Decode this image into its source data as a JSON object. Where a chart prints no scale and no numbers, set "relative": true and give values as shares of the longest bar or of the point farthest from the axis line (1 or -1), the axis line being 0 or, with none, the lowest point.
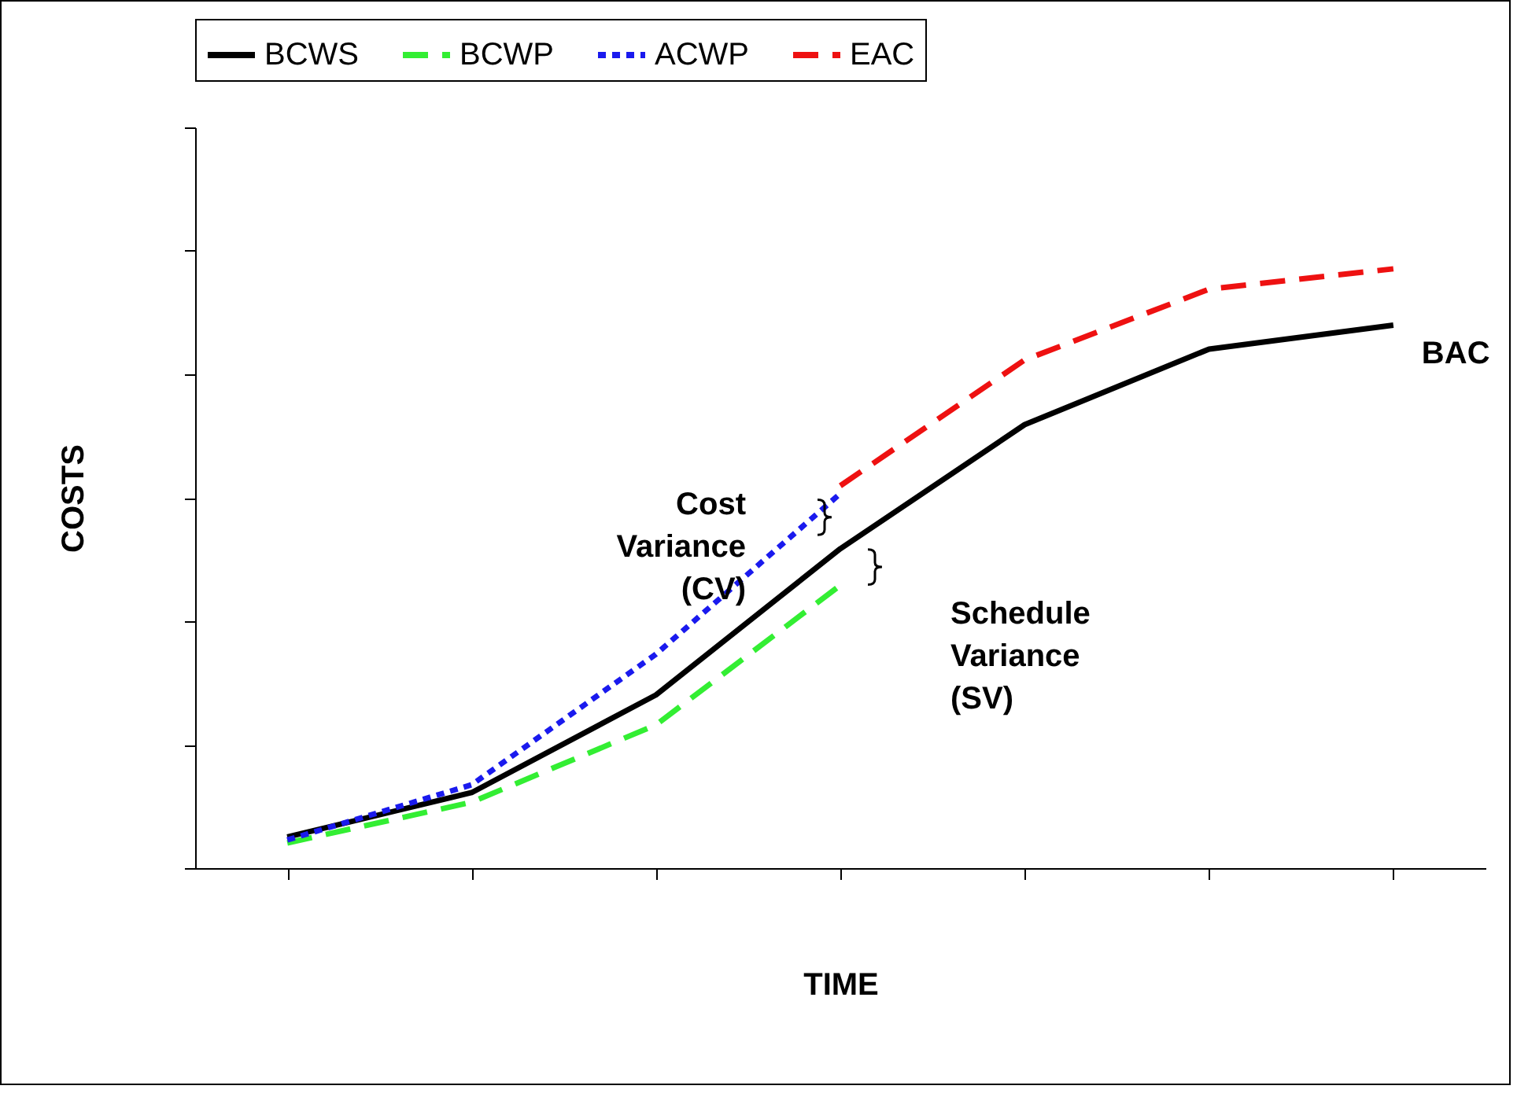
{
  "chart_data": {
    "type": "line",
    "relative": true,
    "xlabel": "TIME",
    "ylabel": "COSTS",
    "categories": [
      null,
      null,
      null,
      null,
      null,
      null,
      null
    ],
    "legend": "top",
    "series": [
      {
        "name": "BCWS",
        "color": "#000000",
        "line_style": "solid",
        "values": [
          0.052,
          0.126,
          0.289,
          0.533,
          0.74,
          0.866,
          0.906
        ]
      },
      {
        "name": "BCWP",
        "color": "#33ee33",
        "line_style": "dashed",
        "values": [
          0.042,
          0.11,
          0.239,
          0.472,
          null,
          null,
          null
        ]
      },
      {
        "name": "ACWP",
        "color": "#1a1aee",
        "line_style": "dotted",
        "values": [
          0.047,
          0.139,
          0.357,
          0.625,
          null,
          null,
          null
        ]
      },
      {
        "name": "EAC",
        "color": "#ee1111",
        "line_style": "dashed",
        "values": [
          null,
          null,
          null,
          0.638,
          0.848,
          0.966,
          1
        ]
      }
    ],
    "annotations": [
      "BAC",
      "Cost Variance (CV)",
      "Schedule Variance (SV)"
    ]
  }
}
